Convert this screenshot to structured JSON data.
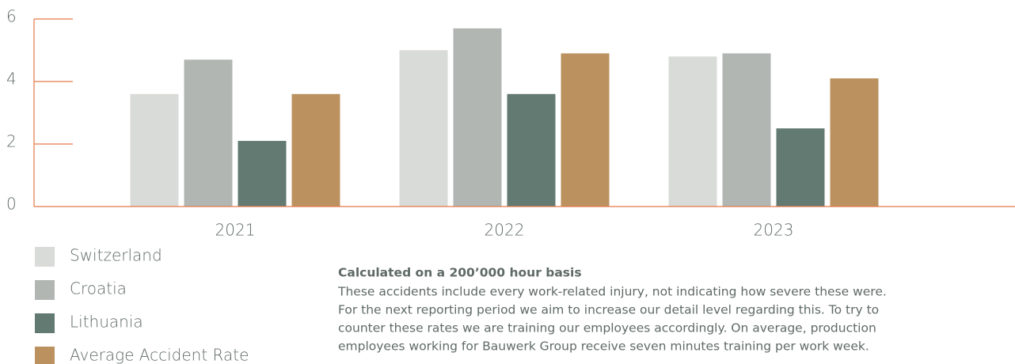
{
  "chart_data": {
    "type": "bar",
    "categories": [
      "2021",
      "2022",
      "2023"
    ],
    "series": [
      {
        "name": "Switzerland",
        "color": "#d9dbd8",
        "values": [
          3.6,
          5.0,
          4.8
        ]
      },
      {
        "name": "Croatia",
        "color": "#b1b6b3",
        "values": [
          4.7,
          5.7,
          4.9
        ]
      },
      {
        "name": "Lithuania",
        "color": "#627a72",
        "values": [
          2.1,
          3.6,
          2.5
        ]
      },
      {
        "name": "Average Accident Rate",
        "color": "#bb925f",
        "values": [
          3.6,
          4.9,
          4.1
        ]
      }
    ],
    "ylim": [
      0,
      6
    ],
    "yticks": [
      0,
      2,
      4,
      6
    ],
    "axis_color": "#e3794a",
    "note": {
      "title": "Calculated on a 200’000 hour basis",
      "lines": [
        "These accidents include every work-related injury, not indicating how severe these were.",
        "For the next reporting period we aim to increase our detail level regarding this. To try to",
        "counter these rates we are training our employees accordingly. On average, production",
        "employees working for Bauwerk Group receive seven minutes training per work week."
      ]
    }
  }
}
